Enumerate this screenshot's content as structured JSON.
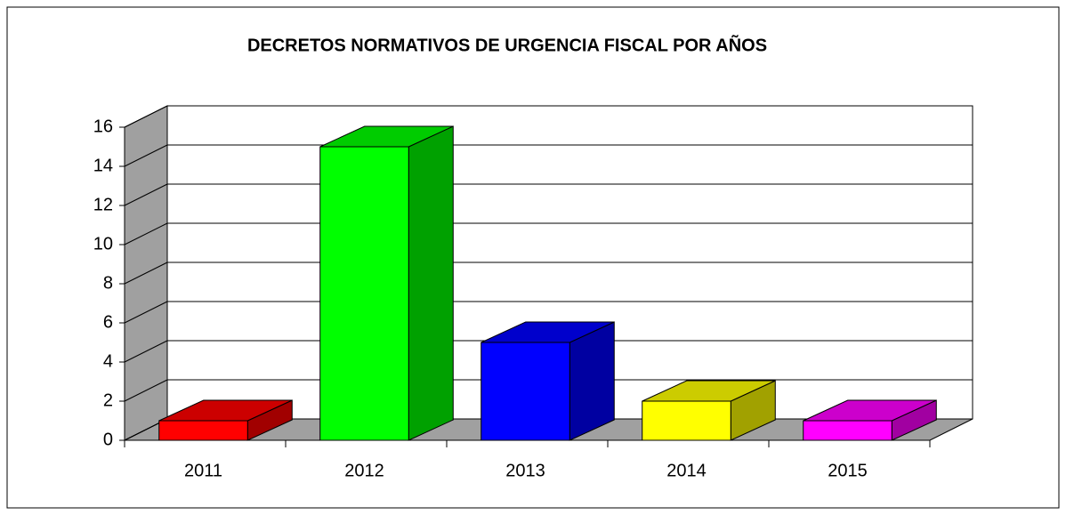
{
  "chart_data": {
    "type": "bar3d",
    "title": "DECRETOS NORMATIVOS  DE URGENCIA  FISCAL POR AÑOS",
    "categories": [
      "2011",
      "2012",
      "2013",
      "2014",
      "2015"
    ],
    "values": [
      1,
      15,
      5,
      2,
      1
    ],
    "colors": [
      "#ff0000",
      "#00ff00",
      "#0000ff",
      "#ffff00",
      "#ff00ff"
    ],
    "ylim": [
      0,
      16
    ],
    "yticks": [
      0,
      2,
      4,
      6,
      8,
      10,
      12,
      14,
      16
    ],
    "grid": true
  }
}
